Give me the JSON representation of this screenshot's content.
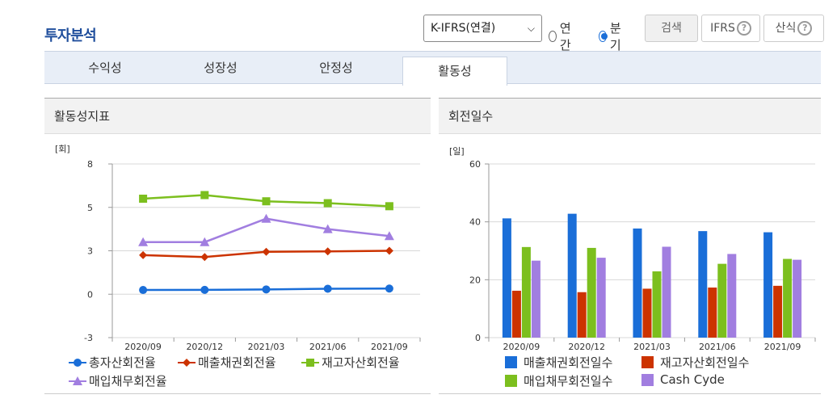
{
  "page": {
    "title": "투자분석"
  },
  "toolbar": {
    "select_value": "K-IFRS(연결)",
    "radio_annual": "연간",
    "radio_quarterly": "분기",
    "search_label": "검색",
    "ifrs_label": "IFRS",
    "formula_label": "산식"
  },
  "tabs": [
    "수익성",
    "성장성",
    "안정성",
    "활동성"
  ],
  "active_tab": "활동성",
  "left_panel": {
    "title": "활동성지표",
    "unit": "[회]"
  },
  "right_panel": {
    "title": "회전일수",
    "unit": "[일]"
  },
  "chart_data": [
    {
      "type": "line",
      "categories": [
        "2020/09",
        "2020/12",
        "2021/03",
        "2021/06",
        "2021/09"
      ],
      "ylim": [
        -3,
        8
      ],
      "yticks": [
        "8",
        "5",
        "3",
        "0",
        "-3"
      ],
      "series": [
        {
          "name": "총자산회전율",
          "color": "#1a6ed8",
          "marker": "circle",
          "values": [
            0.29,
            0.3,
            0.33,
            0.38,
            0.39
          ]
        },
        {
          "name": "매출채권회전율",
          "color": "#cc3300",
          "marker": "diamond",
          "values": [
            2.7,
            2.57,
            2.93,
            2.96,
            3.0
          ]
        },
        {
          "name": "재고자산회전율",
          "color": "#7cbf1e",
          "marker": "square",
          "values": [
            5.6,
            5.85,
            5.42,
            5.29,
            5.08
          ]
        },
        {
          "name": "매입채무회전율",
          "color": "#a17ee0",
          "marker": "triangle",
          "values": [
            3.4,
            3.4,
            4.48,
            4.0,
            3.68
          ]
        }
      ]
    },
    {
      "type": "bar",
      "categories": [
        "2020/09",
        "2020/12",
        "2021/03",
        "2021/06",
        "2021/09"
      ],
      "ylim": [
        0,
        60
      ],
      "yticks": [
        "60",
        "40",
        "20",
        "0"
      ],
      "series": [
        {
          "name": "매출채권회전일수",
          "color": "#1a6ed8",
          "values": [
            41.2,
            42.8,
            37.7,
            36.8,
            36.4
          ]
        },
        {
          "name": "재고자산회전일수",
          "color": "#cc3300",
          "values": [
            16.2,
            15.7,
            16.9,
            17.3,
            17.9
          ]
        },
        {
          "name": "매입채무회전일수",
          "color": "#7cbf1e",
          "values": [
            31.3,
            31.0,
            22.9,
            25.5,
            27.2
          ]
        },
        {
          "name": "Cash Cyde",
          "color": "#a17ee0",
          "values": [
            26.6,
            27.6,
            31.4,
            28.9,
            26.9
          ]
        }
      ]
    }
  ]
}
